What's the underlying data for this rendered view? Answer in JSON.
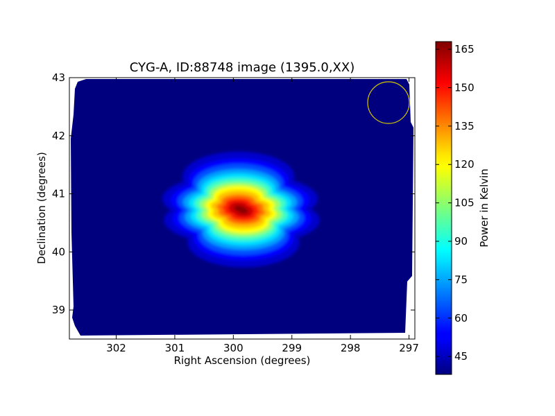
{
  "chart_data": {
    "type": "heatmap",
    "title": "CYG-A, ID:88748 image (1395.0,XX)",
    "xlabel": "Right Ascension (degrees)",
    "ylabel": "Declination (degrees)",
    "xlim": [
      302.8,
      296.9
    ],
    "ylim": [
      38.5,
      43.0
    ],
    "x_ticks": [
      "302",
      "301",
      "300",
      "299",
      "298",
      "297"
    ],
    "x_tick_values": [
      302,
      301,
      300,
      299,
      298,
      297
    ],
    "y_ticks": [
      "39",
      "40",
      "41",
      "42",
      "43"
    ],
    "y_tick_values": [
      39,
      40,
      41,
      42,
      43
    ],
    "colormap": "jet",
    "colorbar": {
      "label": "Power in Kelvin",
      "range": [
        38,
        168
      ],
      "ticks": [
        "45",
        "60",
        "75",
        "90",
        "105",
        "120",
        "135",
        "150",
        "165"
      ],
      "tick_values": [
        45,
        60,
        75,
        90,
        105,
        120,
        135,
        150,
        165
      ]
    },
    "source": {
      "ra": 299.87,
      "dec": 40.73,
      "peak_kelvin": 168,
      "background_kelvin": 40
    },
    "beam_marker": {
      "ra": 297.35,
      "dec": 42.57,
      "color": "#d4c800"
    }
  }
}
